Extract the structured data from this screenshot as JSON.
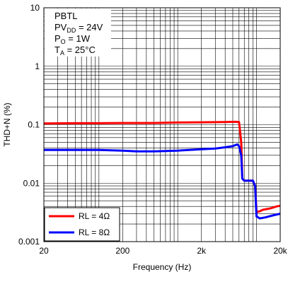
{
  "chart_data": {
    "type": "line",
    "x_scale": "log",
    "y_scale": "log",
    "xlim": [
      20,
      20000
    ],
    "ylim": [
      0.001,
      10
    ],
    "xlabel": "Frequency (Hz)",
    "ylabel": "THD+N (%)",
    "x_ticks": [
      {
        "value": 20,
        "label": "20"
      },
      {
        "value": 200,
        "label": "200"
      },
      {
        "value": 2000,
        "label": "2k"
      },
      {
        "value": 20000,
        "label": "20k"
      }
    ],
    "y_ticks": [
      {
        "value": 0.001,
        "label": "0.001"
      },
      {
        "value": 0.01,
        "label": "0.01"
      },
      {
        "value": 0.1,
        "label": "0.1"
      },
      {
        "value": 1,
        "label": "1"
      },
      {
        "value": 10,
        "label": "10"
      }
    ],
    "grid": true,
    "conditions": {
      "mode": "PBTL",
      "pvdd_main": "PV",
      "pvdd_sub": "DD",
      "pvdd_value": " = 24V",
      "po_main": "P",
      "po_sub": "O",
      "po_value": " = 1W",
      "ta_main": "T",
      "ta_sub": "A",
      "ta_value": " = 25°C"
    },
    "legend_position": "bottom-left",
    "series": [
      {
        "name": "RL = 4Ω",
        "color": "#ff0000",
        "x": [
          20,
          50,
          100,
          200,
          500,
          1000,
          2000,
          4000,
          5500,
          6000,
          6400,
          6600,
          7000,
          8000,
          9000,
          9600,
          10000,
          11000,
          12000,
          15000,
          18000,
          20000
        ],
        "y": [
          0.105,
          0.106,
          0.106,
          0.107,
          0.107,
          0.109,
          0.11,
          0.111,
          0.112,
          0.111,
          0.05,
          0.012,
          0.011,
          0.011,
          0.011,
          0.009,
          0.0032,
          0.0033,
          0.0035,
          0.0037,
          0.004,
          0.0041
        ]
      },
      {
        "name": "RL = 8Ω",
        "color": "#0000ff",
        "x": [
          20,
          50,
          100,
          200,
          300,
          500,
          1000,
          2000,
          3000,
          4000,
          5000,
          5700,
          6000,
          6400,
          6600,
          7000,
          8000,
          9000,
          9600,
          10000,
          11000,
          13000,
          16000,
          20000
        ],
        "y": [
          0.037,
          0.037,
          0.037,
          0.036,
          0.035,
          0.035,
          0.036,
          0.038,
          0.039,
          0.041,
          0.043,
          0.046,
          0.043,
          0.03,
          0.012,
          0.011,
          0.011,
          0.011,
          0.009,
          0.0027,
          0.0025,
          0.0026,
          0.0028,
          0.003
        ]
      }
    ]
  }
}
